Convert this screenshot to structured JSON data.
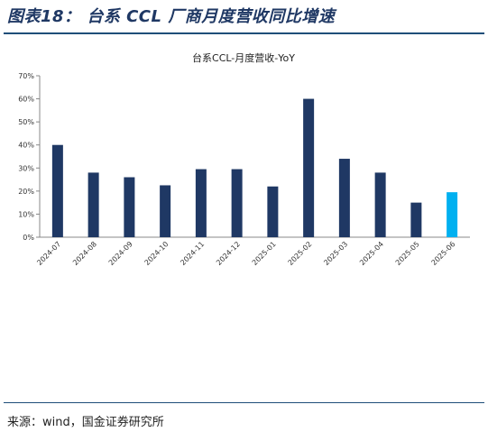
{
  "figure": {
    "title": "图表18： 台系 CCL 厂商月度营收同比增速",
    "source": "来源：wind，国金证券研究所"
  },
  "colors": {
    "bar": "#1f3864",
    "highlight_bar": "#00b0f0",
    "title": "#1f3864",
    "rule": "#1f4e79"
  },
  "chart_data": {
    "type": "bar",
    "title": "台系CCL-月度营收-YoY",
    "xlabel": "",
    "ylabel": "",
    "categories": [
      "2024-07",
      "2024-08",
      "2024-09",
      "2024-10",
      "2024-11",
      "2024-12",
      "2025-01",
      "2025-02",
      "2025-03",
      "2025-04",
      "2025-05",
      "2025-06"
    ],
    "values": [
      40,
      28,
      26,
      22.5,
      29.5,
      29.5,
      22,
      60,
      34,
      28,
      15,
      19.5
    ],
    "highlight_index": 11,
    "ylim": [
      0,
      70
    ],
    "yticks": [
      0,
      10,
      20,
      30,
      40,
      50,
      60,
      70
    ],
    "ytick_labels": [
      "0%",
      "10%",
      "20%",
      "30%",
      "40%",
      "50%",
      "60%",
      "70%"
    ],
    "grid": false,
    "legend": "none"
  }
}
